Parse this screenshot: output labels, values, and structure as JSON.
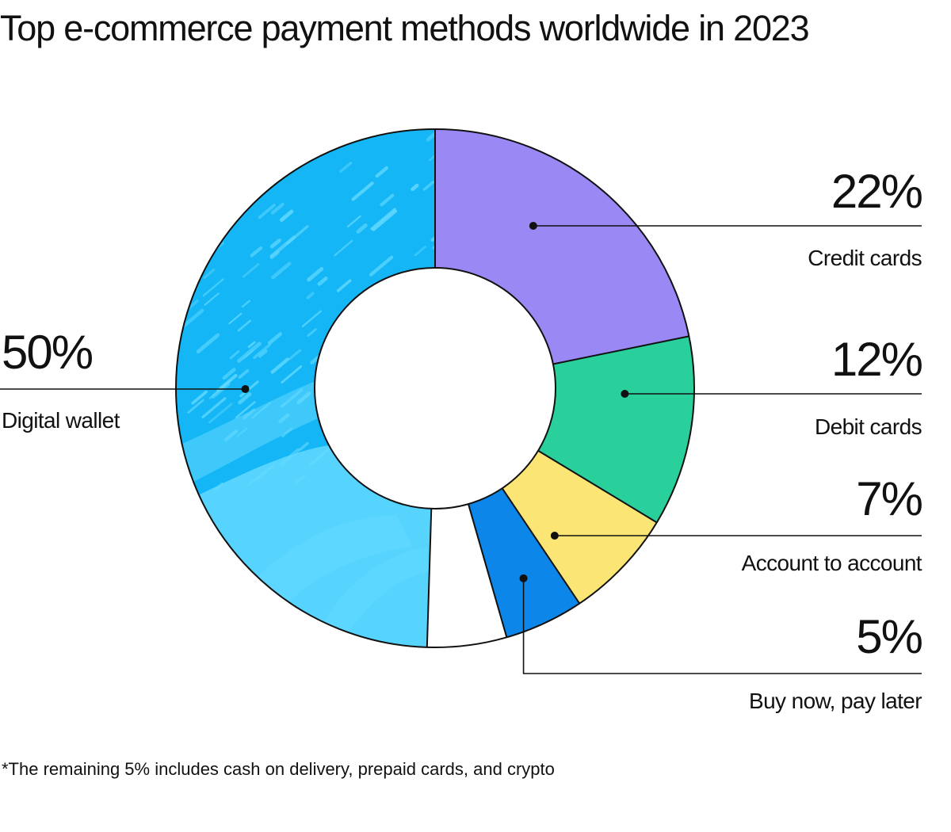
{
  "chart_data": {
    "type": "pie",
    "variant": "donut",
    "title": "Top e-commerce payment methods worldwide in 2023",
    "unit": "%",
    "start_angle_deg": 0,
    "direction": "clockwise",
    "slices": [
      {
        "label": "Credit cards",
        "value": 22,
        "display": "22%",
        "color": "#9a88f4",
        "label_side": "right"
      },
      {
        "label": "Debit cards",
        "value": 12,
        "display": "12%",
        "color": "#29d09b",
        "label_side": "right"
      },
      {
        "label": "Account to account",
        "value": 7,
        "display": "7%",
        "color": "#fbe675",
        "label_side": "right"
      },
      {
        "label": "Buy now, pay later",
        "value": 5,
        "display": "5%",
        "color": "#0d86ea",
        "label_side": "right"
      },
      {
        "label": "",
        "value": 5,
        "display": "",
        "color": "#ffffff",
        "label_side": "none"
      },
      {
        "label": "Digital wallet",
        "value": 50,
        "display": "50%",
        "color": "#14b6f6",
        "label_side": "left"
      }
    ],
    "footnote": "*The remaining 5% includes cash on delivery, prepaid cards, and crypto"
  },
  "colors": {
    "text": "#111111",
    "outline": "#111111",
    "background": "#ffffff",
    "wallet_texture": "#62d9ff"
  }
}
